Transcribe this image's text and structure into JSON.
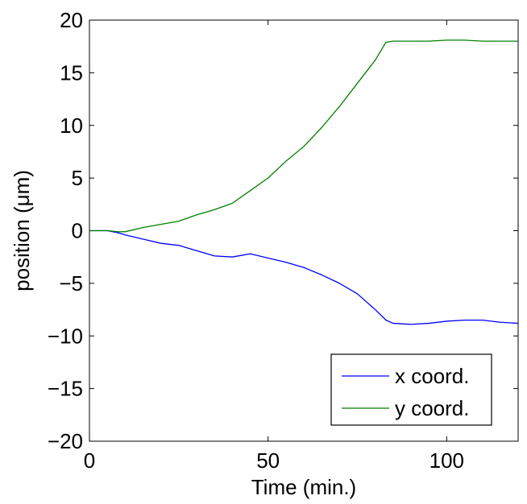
{
  "chart_data": {
    "type": "line",
    "title": "",
    "xlabel": "Time (min.)",
    "ylabel": "position (μm)",
    "xlim": [
      0,
      120
    ],
    "ylim": [
      -20,
      20
    ],
    "xticks": [
      0,
      50,
      100
    ],
    "yticks": [
      -20,
      -15,
      -10,
      -5,
      0,
      5,
      10,
      15,
      20
    ],
    "xtick_labels": [
      "0",
      "50",
      "100"
    ],
    "ytick_labels": [
      "−20",
      "−15",
      "−10",
      "−5",
      "0",
      "5",
      "10",
      "15",
      "20"
    ],
    "grid": false,
    "legend_position": "bottom-right",
    "series": [
      {
        "name": "x coord.",
        "color": "#0000ff",
        "x": [
          0,
          5,
          8,
          10,
          15,
          20,
          25,
          30,
          35,
          40,
          45,
          50,
          55,
          60,
          65,
          70,
          75,
          80,
          83,
          85,
          90,
          95,
          100,
          105,
          110,
          115,
          120
        ],
        "y": [
          0,
          0,
          -0.2,
          -0.4,
          -0.8,
          -1.2,
          -1.4,
          -1.9,
          -2.4,
          -2.5,
          -2.2,
          -2.6,
          -3.0,
          -3.5,
          -4.2,
          -5.0,
          -6.0,
          -7.5,
          -8.5,
          -8.8,
          -8.9,
          -8.8,
          -8.6,
          -8.5,
          -8.5,
          -8.7,
          -8.8
        ]
      },
      {
        "name": "y coord.",
        "color": "#007f00",
        "x": [
          0,
          5,
          8,
          10,
          15,
          20,
          25,
          30,
          35,
          40,
          45,
          50,
          55,
          60,
          65,
          70,
          75,
          80,
          83,
          85,
          90,
          95,
          100,
          105,
          110,
          115,
          120
        ],
        "y": [
          0,
          0,
          -0.1,
          -0.1,
          0.3,
          0.6,
          0.9,
          1.5,
          2.0,
          2.6,
          3.8,
          5.0,
          6.6,
          8.0,
          9.8,
          11.8,
          14.0,
          16.2,
          17.9,
          18.0,
          18.0,
          18.0,
          18.1,
          18.1,
          18.0,
          18.0,
          18.0
        ]
      }
    ]
  }
}
